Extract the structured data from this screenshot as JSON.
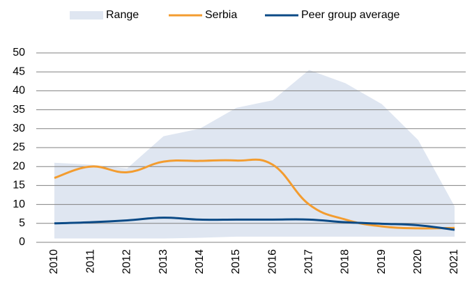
{
  "chart_data": {
    "type": "line",
    "categories": [
      "2010",
      "2011",
      "2012",
      "2013",
      "2014",
      "2015",
      "2016",
      "2017",
      "2018",
      "2019",
      "2020",
      "2021"
    ],
    "series": [
      {
        "name": "Range",
        "type": "area",
        "color": "#dfe6f1",
        "upper": [
          21,
          20.5,
          19.5,
          28,
          30,
          35.5,
          37.5,
          45.5,
          42,
          36.5,
          27,
          9.5
        ],
        "lower": [
          1,
          1,
          1,
          1,
          1.2,
          1.5,
          1.5,
          1.5,
          1.5,
          1.5,
          1.5,
          1.5
        ]
      },
      {
        "name": "Serbia",
        "type": "line",
        "color": "#f39c2f",
        "values": [
          17,
          20,
          18.5,
          21.3,
          21.5,
          21.6,
          20.5,
          10,
          6,
          4.2,
          3.7,
          3.8
        ]
      },
      {
        "name": "Peer group average",
        "type": "line",
        "color": "#0b4a86",
        "values": [
          5,
          5.3,
          5.8,
          6.5,
          6,
          6,
          6,
          6,
          5.3,
          4.9,
          4.5,
          3.3
        ]
      }
    ],
    "ylim": [
      0,
      50
    ],
    "yticks": [
      0,
      5,
      10,
      15,
      20,
      25,
      30,
      35,
      40,
      45,
      50
    ],
    "grid": true,
    "legend": "top"
  }
}
